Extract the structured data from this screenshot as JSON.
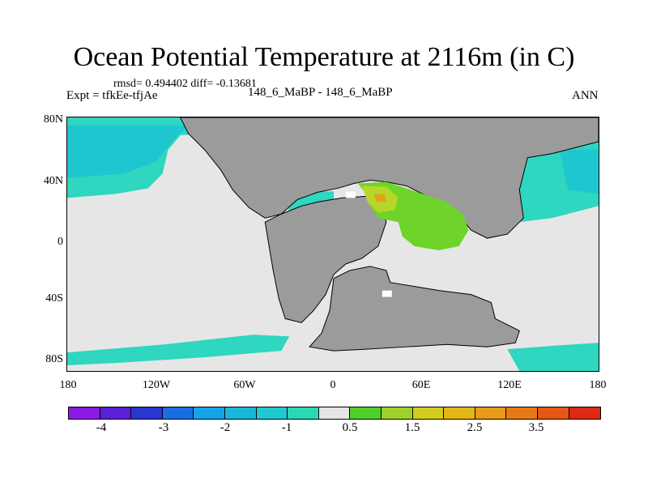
{
  "title": "Ocean Potential Temperature at 2116m (in C)",
  "stats": "rmsd= 0.494402 diff= -0.13681",
  "expt": "Expt = tfkEe-tfjAe",
  "case": "148_6_MaBP - 148_6_MaBP",
  "season": "ANN",
  "y_ticks": [
    "80N",
    "40N",
    "0",
    "40S",
    "80S"
  ],
  "x_ticks": [
    "180",
    "120W",
    "60W",
    "0",
    "60E",
    "120E",
    "180"
  ],
  "colorbar": {
    "colors": [
      "#8a1be6",
      "#5a1fd6",
      "#2a36d2",
      "#1a6fe0",
      "#17a4e6",
      "#19b7d8",
      "#1ec9d0",
      "#2ad8b6",
      "#e5e5e5",
      "#4fcf2a",
      "#9ed12a",
      "#d4cc20",
      "#e3b61a",
      "#e89a18",
      "#e57a16",
      "#e65614",
      "#dd2a12"
    ],
    "labels": [
      "-4",
      "-3",
      "-2",
      "-1",
      "0.5",
      "1.5",
      "2.5",
      "3.5"
    ]
  },
  "colors": {
    "land": "#9b9b9b",
    "ocean_zero": "#e6e6e6",
    "cyan": "#2fd6c0",
    "cyan2": "#1ec6cf",
    "green": "#6fd42a",
    "yellowgreen": "#b8d62a",
    "orange": "#e0a020"
  }
}
